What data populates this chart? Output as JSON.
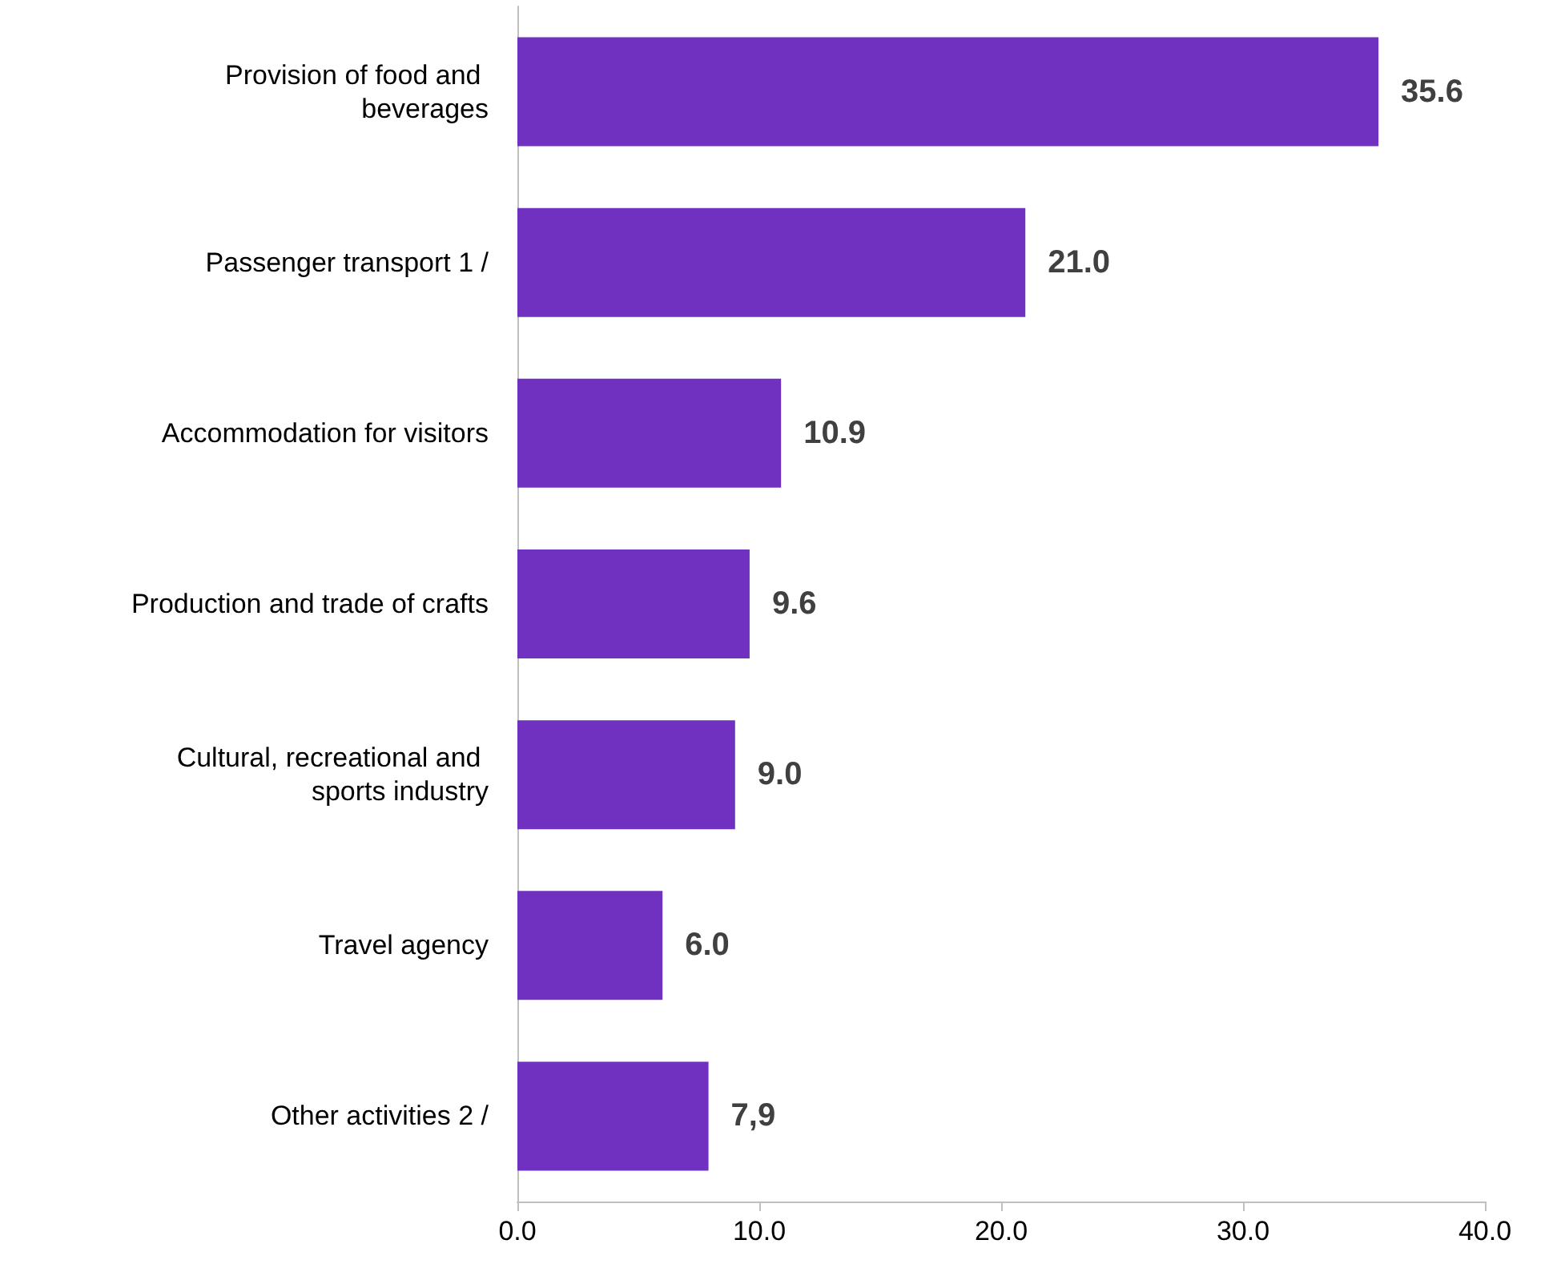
{
  "chart_data": {
    "type": "bar",
    "orientation": "horizontal",
    "categories": [
      "Provision of food and beverages",
      "Passenger transport 1 /",
      "Accommodation for visitors",
      "Production and trade of crafts",
      "Cultural, recreational and sports industry",
      "Travel agency",
      "Other activities 2 /"
    ],
    "values": [
      35.6,
      21.0,
      10.9,
      9.6,
      9.0,
      6.0,
      7.9
    ],
    "value_labels": [
      "35.6",
      "21.0",
      "10.9",
      "9.6",
      "9.0",
      "6.0",
      "7,9"
    ],
    "color": "#7030c0",
    "xlim": [
      0,
      40
    ],
    "xticks": [
      {
        "value": 0,
        "label": "0.0"
      },
      {
        "value": 10,
        "label": "10.0"
      },
      {
        "value": 20,
        "label": "20.0"
      },
      {
        "value": 30,
        "label": "30.0"
      },
      {
        "value": 40,
        "label": "40.0"
      }
    ],
    "grid": false
  }
}
